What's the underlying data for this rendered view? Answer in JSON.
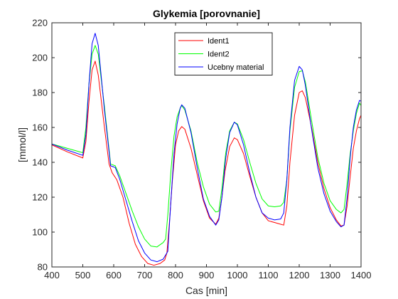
{
  "chart_data": {
    "type": "line",
    "title": "Glykemia [porovnanie]",
    "xlabel": "Cas [min]",
    "ylabel": "[mmol/l]",
    "xlim": [
      400,
      1400
    ],
    "ylim": [
      80,
      220
    ],
    "xticks": [
      400,
      500,
      600,
      700,
      800,
      900,
      1000,
      1100,
      1200,
      1300,
      1400
    ],
    "yticks": [
      80,
      100,
      120,
      140,
      160,
      180,
      200,
      220
    ],
    "grid": false,
    "legend_position": "top-center",
    "series": [
      {
        "name": "Ident1",
        "color": "#ff0000",
        "points": [
          [
            400,
            150
          ],
          [
            450,
            146
          ],
          [
            500,
            142.5
          ],
          [
            510,
            152
          ],
          [
            520,
            175
          ],
          [
            530,
            193
          ],
          [
            540,
            198
          ],
          [
            550,
            190
          ],
          [
            570,
            160
          ],
          [
            585,
            139
          ],
          [
            595,
            134
          ],
          [
            610,
            130
          ],
          [
            630,
            120
          ],
          [
            650,
            105
          ],
          [
            670,
            93
          ],
          [
            690,
            86
          ],
          [
            710,
            82
          ],
          [
            730,
            81
          ],
          [
            750,
            82
          ],
          [
            765,
            84
          ],
          [
            772,
            88
          ],
          [
            780,
            105
          ],
          [
            790,
            130
          ],
          [
            800,
            150
          ],
          [
            810,
            158
          ],
          [
            820,
            160.5
          ],
          [
            830,
            159
          ],
          [
            850,
            148
          ],
          [
            870,
            133
          ],
          [
            890,
            118
          ],
          [
            910,
            108
          ],
          [
            930,
            104.5
          ],
          [
            940,
            108
          ],
          [
            950,
            120
          ],
          [
            960,
            135
          ],
          [
            975,
            149
          ],
          [
            990,
            154
          ],
          [
            1000,
            153
          ],
          [
            1020,
            145
          ],
          [
            1040,
            132
          ],
          [
            1060,
            120
          ],
          [
            1080,
            111
          ],
          [
            1100,
            106.5
          ],
          [
            1120,
            105.5
          ],
          [
            1140,
            104.5
          ],
          [
            1150,
            104
          ],
          [
            1160,
            115
          ],
          [
            1170,
            140
          ],
          [
            1185,
            167
          ],
          [
            1200,
            180
          ],
          [
            1210,
            181
          ],
          [
            1220,
            177
          ],
          [
            1240,
            160
          ],
          [
            1260,
            140
          ],
          [
            1280,
            125
          ],
          [
            1300,
            114
          ],
          [
            1320,
            107
          ],
          [
            1335,
            103.5
          ],
          [
            1345,
            104
          ],
          [
            1355,
            115
          ],
          [
            1365,
            132
          ],
          [
            1375,
            148
          ],
          [
            1385,
            158
          ],
          [
            1395,
            165
          ],
          [
            1400,
            167
          ]
        ]
      },
      {
        "name": "Ident2",
        "color": "#00ff00",
        "points": [
          [
            400,
            150.5
          ],
          [
            450,
            148
          ],
          [
            500,
            145.5
          ],
          [
            510,
            160
          ],
          [
            520,
            185
          ],
          [
            530,
            202
          ],
          [
            540,
            207
          ],
          [
            550,
            202
          ],
          [
            570,
            172
          ],
          [
            590,
            139
          ],
          [
            605,
            138
          ],
          [
            620,
            132
          ],
          [
            640,
            122
          ],
          [
            660,
            112
          ],
          [
            680,
            103
          ],
          [
            700,
            96
          ],
          [
            720,
            92
          ],
          [
            740,
            91.5
          ],
          [
            760,
            94
          ],
          [
            768,
            96
          ],
          [
            775,
            110
          ],
          [
            785,
            135
          ],
          [
            795,
            155
          ],
          [
            805,
            166
          ],
          [
            815,
            171
          ],
          [
            820,
            172.5
          ],
          [
            830,
            170
          ],
          [
            850,
            158
          ],
          [
            870,
            140
          ],
          [
            890,
            126
          ],
          [
            910,
            116
          ],
          [
            930,
            111.5
          ],
          [
            940,
            112
          ],
          [
            950,
            125
          ],
          [
            962,
            145
          ],
          [
            975,
            158
          ],
          [
            990,
            163
          ],
          [
            1000,
            162
          ],
          [
            1020,
            153
          ],
          [
            1040,
            140
          ],
          [
            1060,
            128
          ],
          [
            1080,
            119
          ],
          [
            1100,
            115
          ],
          [
            1120,
            114.5
          ],
          [
            1140,
            115
          ],
          [
            1150,
            117
          ],
          [
            1160,
            130
          ],
          [
            1170,
            158
          ],
          [
            1185,
            183
          ],
          [
            1200,
            192
          ],
          [
            1210,
            192.5
          ],
          [
            1220,
            186
          ],
          [
            1240,
            164
          ],
          [
            1260,
            143
          ],
          [
            1280,
            128
          ],
          [
            1300,
            118
          ],
          [
            1320,
            113
          ],
          [
            1335,
            111
          ],
          [
            1345,
            113
          ],
          [
            1355,
            128
          ],
          [
            1365,
            145
          ],
          [
            1375,
            158
          ],
          [
            1385,
            168
          ],
          [
            1395,
            174
          ],
          [
            1400,
            172.5
          ]
        ]
      },
      {
        "name": "Ucebny material",
        "color": "#0000ff",
        "points": [
          [
            400,
            150.5
          ],
          [
            450,
            147
          ],
          [
            500,
            144
          ],
          [
            510,
            156
          ],
          [
            520,
            185
          ],
          [
            530,
            208
          ],
          [
            540,
            214
          ],
          [
            550,
            207
          ],
          [
            570,
            170
          ],
          [
            590,
            138
          ],
          [
            605,
            137
          ],
          [
            620,
            130
          ],
          [
            640,
            118
          ],
          [
            660,
            106
          ],
          [
            680,
            95
          ],
          [
            700,
            88
          ],
          [
            720,
            84
          ],
          [
            740,
            83
          ],
          [
            760,
            84.5
          ],
          [
            775,
            89
          ],
          [
            785,
            118
          ],
          [
            795,
            145
          ],
          [
            805,
            162
          ],
          [
            815,
            171
          ],
          [
            820,
            173
          ],
          [
            830,
            171
          ],
          [
            850,
            157
          ],
          [
            870,
            137
          ],
          [
            890,
            119
          ],
          [
            910,
            109
          ],
          [
            930,
            104
          ],
          [
            940,
            107
          ],
          [
            950,
            120
          ],
          [
            962,
            142
          ],
          [
            975,
            157
          ],
          [
            990,
            163
          ],
          [
            1000,
            161.5
          ],
          [
            1020,
            150
          ],
          [
            1040,
            134
          ],
          [
            1060,
            120
          ],
          [
            1080,
            111
          ],
          [
            1100,
            108
          ],
          [
            1120,
            107
          ],
          [
            1140,
            107.5
          ],
          [
            1150,
            111
          ],
          [
            1160,
            130
          ],
          [
            1170,
            160
          ],
          [
            1185,
            187
          ],
          [
            1200,
            195
          ],
          [
            1210,
            193
          ],
          [
            1220,
            184
          ],
          [
            1240,
            159
          ],
          [
            1260,
            137
          ],
          [
            1280,
            122
          ],
          [
            1300,
            112
          ],
          [
            1320,
            106
          ],
          [
            1335,
            103
          ],
          [
            1345,
            104
          ],
          [
            1355,
            120
          ],
          [
            1365,
            143
          ],
          [
            1375,
            160
          ],
          [
            1385,
            170
          ],
          [
            1395,
            175.5
          ],
          [
            1400,
            175
          ]
        ]
      }
    ]
  }
}
